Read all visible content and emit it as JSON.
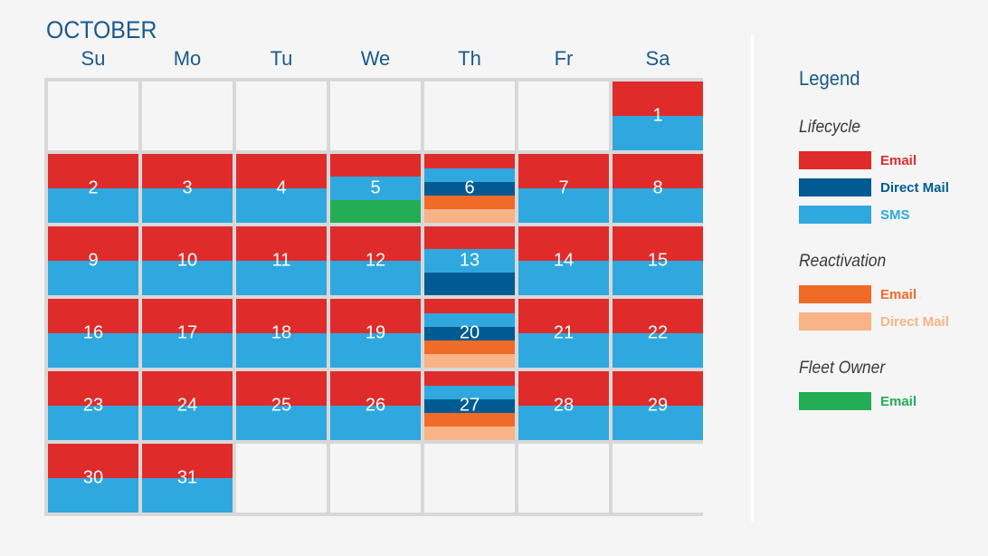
{
  "month": "OCTOBER",
  "weekdays": [
    "Su",
    "Mo",
    "Tu",
    "We",
    "Th",
    "Fr",
    "Sa"
  ],
  "colors": {
    "lifecycle_email": "#e02b2b",
    "lifecycle_direct_mail": "#005b92",
    "lifecycle_sms": "#2fa8e0",
    "reactivation_email": "#f06a28",
    "reactivation_direct_mail": "#f8b386",
    "fleet_owner_email": "#23ae56"
  },
  "start_weekday": 6,
  "days": [
    {
      "day": "1",
      "bands": [
        "lifecycle_email",
        "lifecycle_sms"
      ]
    },
    {
      "day": "2",
      "bands": [
        "lifecycle_email",
        "lifecycle_sms"
      ]
    },
    {
      "day": "3",
      "bands": [
        "lifecycle_email",
        "lifecycle_sms"
      ]
    },
    {
      "day": "4",
      "bands": [
        "lifecycle_email",
        "lifecycle_sms"
      ]
    },
    {
      "day": "5",
      "bands": [
        "lifecycle_email",
        "lifecycle_sms",
        "fleet_owner_email"
      ]
    },
    {
      "day": "6",
      "bands": [
        "lifecycle_email",
        "lifecycle_sms",
        "lifecycle_direct_mail",
        "reactivation_email",
        "reactivation_direct_mail"
      ]
    },
    {
      "day": "7",
      "bands": [
        "lifecycle_email",
        "lifecycle_sms"
      ]
    },
    {
      "day": "8",
      "bands": [
        "lifecycle_email",
        "lifecycle_sms"
      ]
    },
    {
      "day": "9",
      "bands": [
        "lifecycle_email",
        "lifecycle_sms"
      ]
    },
    {
      "day": "10",
      "bands": [
        "lifecycle_email",
        "lifecycle_sms"
      ]
    },
    {
      "day": "11",
      "bands": [
        "lifecycle_email",
        "lifecycle_sms"
      ]
    },
    {
      "day": "12",
      "bands": [
        "lifecycle_email",
        "lifecycle_sms"
      ]
    },
    {
      "day": "13",
      "bands": [
        "lifecycle_email",
        "lifecycle_sms",
        "lifecycle_direct_mail"
      ]
    },
    {
      "day": "14",
      "bands": [
        "lifecycle_email",
        "lifecycle_sms"
      ]
    },
    {
      "day": "15",
      "bands": [
        "lifecycle_email",
        "lifecycle_sms"
      ]
    },
    {
      "day": "16",
      "bands": [
        "lifecycle_email",
        "lifecycle_sms"
      ]
    },
    {
      "day": "17",
      "bands": [
        "lifecycle_email",
        "lifecycle_sms"
      ]
    },
    {
      "day": "18",
      "bands": [
        "lifecycle_email",
        "lifecycle_sms"
      ]
    },
    {
      "day": "19",
      "bands": [
        "lifecycle_email",
        "lifecycle_sms"
      ]
    },
    {
      "day": "20",
      "bands": [
        "lifecycle_email",
        "lifecycle_sms",
        "lifecycle_direct_mail",
        "reactivation_email",
        "reactivation_direct_mail"
      ]
    },
    {
      "day": "21",
      "bands": [
        "lifecycle_email",
        "lifecycle_sms"
      ]
    },
    {
      "day": "22",
      "bands": [
        "lifecycle_email",
        "lifecycle_sms"
      ]
    },
    {
      "day": "23",
      "bands": [
        "lifecycle_email",
        "lifecycle_sms"
      ]
    },
    {
      "day": "24",
      "bands": [
        "lifecycle_email",
        "lifecycle_sms"
      ]
    },
    {
      "day": "25",
      "bands": [
        "lifecycle_email",
        "lifecycle_sms"
      ]
    },
    {
      "day": "26",
      "bands": [
        "lifecycle_email",
        "lifecycle_sms"
      ]
    },
    {
      "day": "27",
      "bands": [
        "lifecycle_email",
        "lifecycle_sms",
        "lifecycle_direct_mail",
        "reactivation_email",
        "reactivation_direct_mail"
      ]
    },
    {
      "day": "28",
      "bands": [
        "lifecycle_email",
        "lifecycle_sms"
      ]
    },
    {
      "day": "29",
      "bands": [
        "lifecycle_email",
        "lifecycle_sms"
      ]
    },
    {
      "day": "30",
      "bands": [
        "lifecycle_email",
        "lifecycle_sms"
      ]
    },
    {
      "day": "31",
      "bands": [
        "lifecycle_email",
        "lifecycle_sms"
      ]
    }
  ],
  "legend": {
    "title": "Legend",
    "groups": [
      {
        "title": "Lifecycle",
        "items": [
          {
            "label": "Email",
            "color": "#e02b2b"
          },
          {
            "label": "Direct Mail",
            "color": "#005b92"
          },
          {
            "label": "SMS",
            "color": "#2fa8e0"
          }
        ]
      },
      {
        "title": "Reactivation",
        "items": [
          {
            "label": "Email",
            "color": "#f06a28"
          },
          {
            "label": "Direct Mail",
            "color": "#f8b386"
          }
        ]
      },
      {
        "title": "Fleet Owner",
        "items": [
          {
            "label": "Email",
            "color": "#23ae56"
          }
        ]
      }
    ]
  }
}
